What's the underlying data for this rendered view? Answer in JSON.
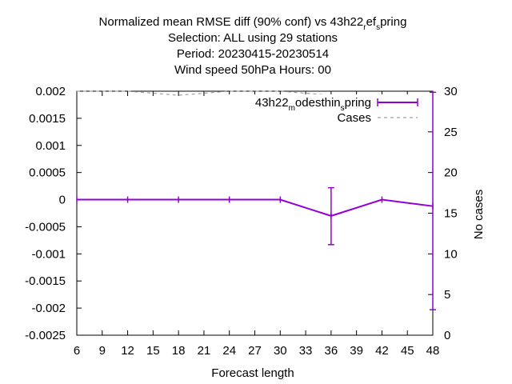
{
  "chart_data": {
    "type": "line",
    "title_lines": [
      "Normalized mean RMSE diff (90% conf) vs 43h22_ref_spring",
      "Selection: ALL using    29 stations",
      "Period: 20230415-20230514",
      "Wind speed 50hPa   Hours:  00"
    ],
    "title_rich": [
      {
        "pre": "Normalized mean RMSE diff (90% conf) vs 43h22",
        "sub1": "r",
        "mid": "ef",
        "sub2": "s",
        "post": "pring"
      },
      {
        "text": "Selection: ALL using    29 stations"
      },
      {
        "text": "Period: 20230415-20230514"
      },
      {
        "text": "Wind speed 50hPa   Hours:  00"
      }
    ],
    "xlabel": "Forecast length",
    "ylabel_left": "",
    "ylabel_right": "No cases",
    "xlim": [
      6,
      48
    ],
    "ylim_left": [
      -0.0025,
      0.002
    ],
    "ylim_right": [
      0,
      30
    ],
    "xticks": [
      "6",
      "9",
      "12",
      "15",
      "18",
      "21",
      "24",
      "27",
      "30",
      "33",
      "36",
      "39",
      "42",
      "45",
      "48"
    ],
    "yticks_left": [
      "0.002",
      "0.0015",
      "0.001",
      "0.0005",
      "0",
      "-0.0005",
      "-0.001",
      "-0.0015",
      "-0.002",
      "-0.0025"
    ],
    "yticks_right": [
      "30",
      "25",
      "20",
      "15",
      "10",
      "5",
      "0"
    ],
    "grid": false,
    "legend_position": "top-right",
    "series": [
      {
        "name": "43h22_modesthin_spring",
        "legend_rich": {
          "pre": "43h22",
          "sub1": "m",
          "mid": "odesthin",
          "sub2": "s",
          "post": "pring"
        },
        "axis": "left",
        "color": "#9400d3",
        "x": [
          6,
          12,
          18,
          24,
          30,
          36,
          42,
          48
        ],
        "y": [
          0,
          0,
          0,
          0,
          0,
          -0.0003,
          0,
          -0.00012
        ],
        "err_low": [
          0,
          0,
          0,
          0,
          0,
          -0.00083,
          0,
          -0.00203
        ],
        "err_high": [
          0,
          0,
          0,
          0,
          0,
          0.00022,
          0,
          0.00198
        ]
      },
      {
        "name": "Cases",
        "axis": "right",
        "color": "#a0a0a0",
        "style": "dashed",
        "x": [
          6,
          12,
          18,
          24,
          30,
          36,
          42,
          48
        ],
        "y": [
          29,
          29,
          29,
          29,
          29,
          29,
          29,
          29
        ],
        "y_drawn": [
          30,
          30,
          29.5,
          30,
          30,
          29.5,
          28.8,
          29
        ]
      }
    ]
  }
}
